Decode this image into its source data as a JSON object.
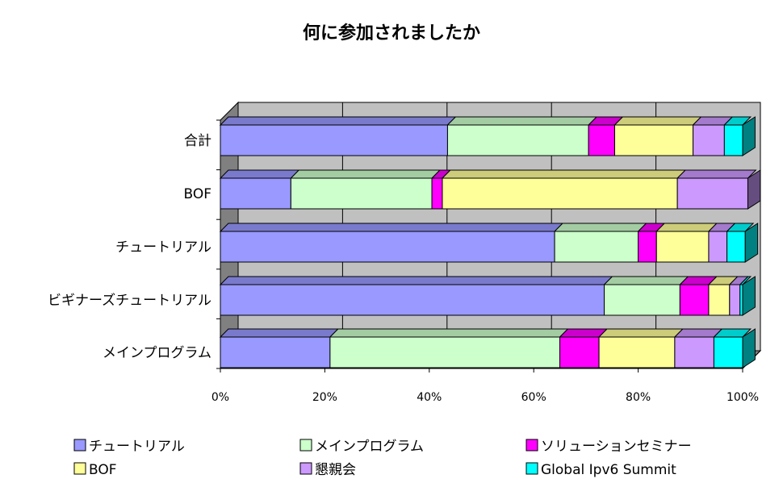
{
  "chart_data": {
    "type": "bar",
    "orientation": "horizontal",
    "stacked": "percent",
    "three_d": true,
    "title": "何に参加されましたか",
    "categories": [
      "合計",
      "BOF",
      "チュートリアル",
      "ビギナーズチュートリアル",
      "メインプログラム"
    ],
    "x_ticks": [
      "0%",
      "20%",
      "40%",
      "60%",
      "80%",
      "100%"
    ],
    "xlim": [
      0,
      100
    ],
    "grid": true,
    "legend_position": "bottom",
    "series": [
      {
        "name": "チュートリアル",
        "color": "#9999ff",
        "values": [
          43.5,
          13.5,
          64,
          73.5,
          21
        ]
      },
      {
        "name": "メインプログラム",
        "color": "#ccffcc",
        "values": [
          27,
          27,
          16,
          14.5,
          44
        ]
      },
      {
        "name": "ソリューションセミナー",
        "color": "#ff00ff",
        "values": [
          5,
          2,
          3.5,
          5.5,
          7.5
        ]
      },
      {
        "name": "BOF",
        "color": "#ffff99",
        "values": [
          15,
          45,
          10,
          4,
          14.5
        ]
      },
      {
        "name": "懇親会",
        "color": "#cc99ff",
        "values": [
          6,
          13.5,
          3.5,
          2,
          7.5
        ]
      },
      {
        "name": "Global Ipv6 Summit",
        "color": "#00ffff",
        "values": [
          3.5,
          0,
          3.5,
          0.5,
          5.5
        ]
      }
    ]
  }
}
